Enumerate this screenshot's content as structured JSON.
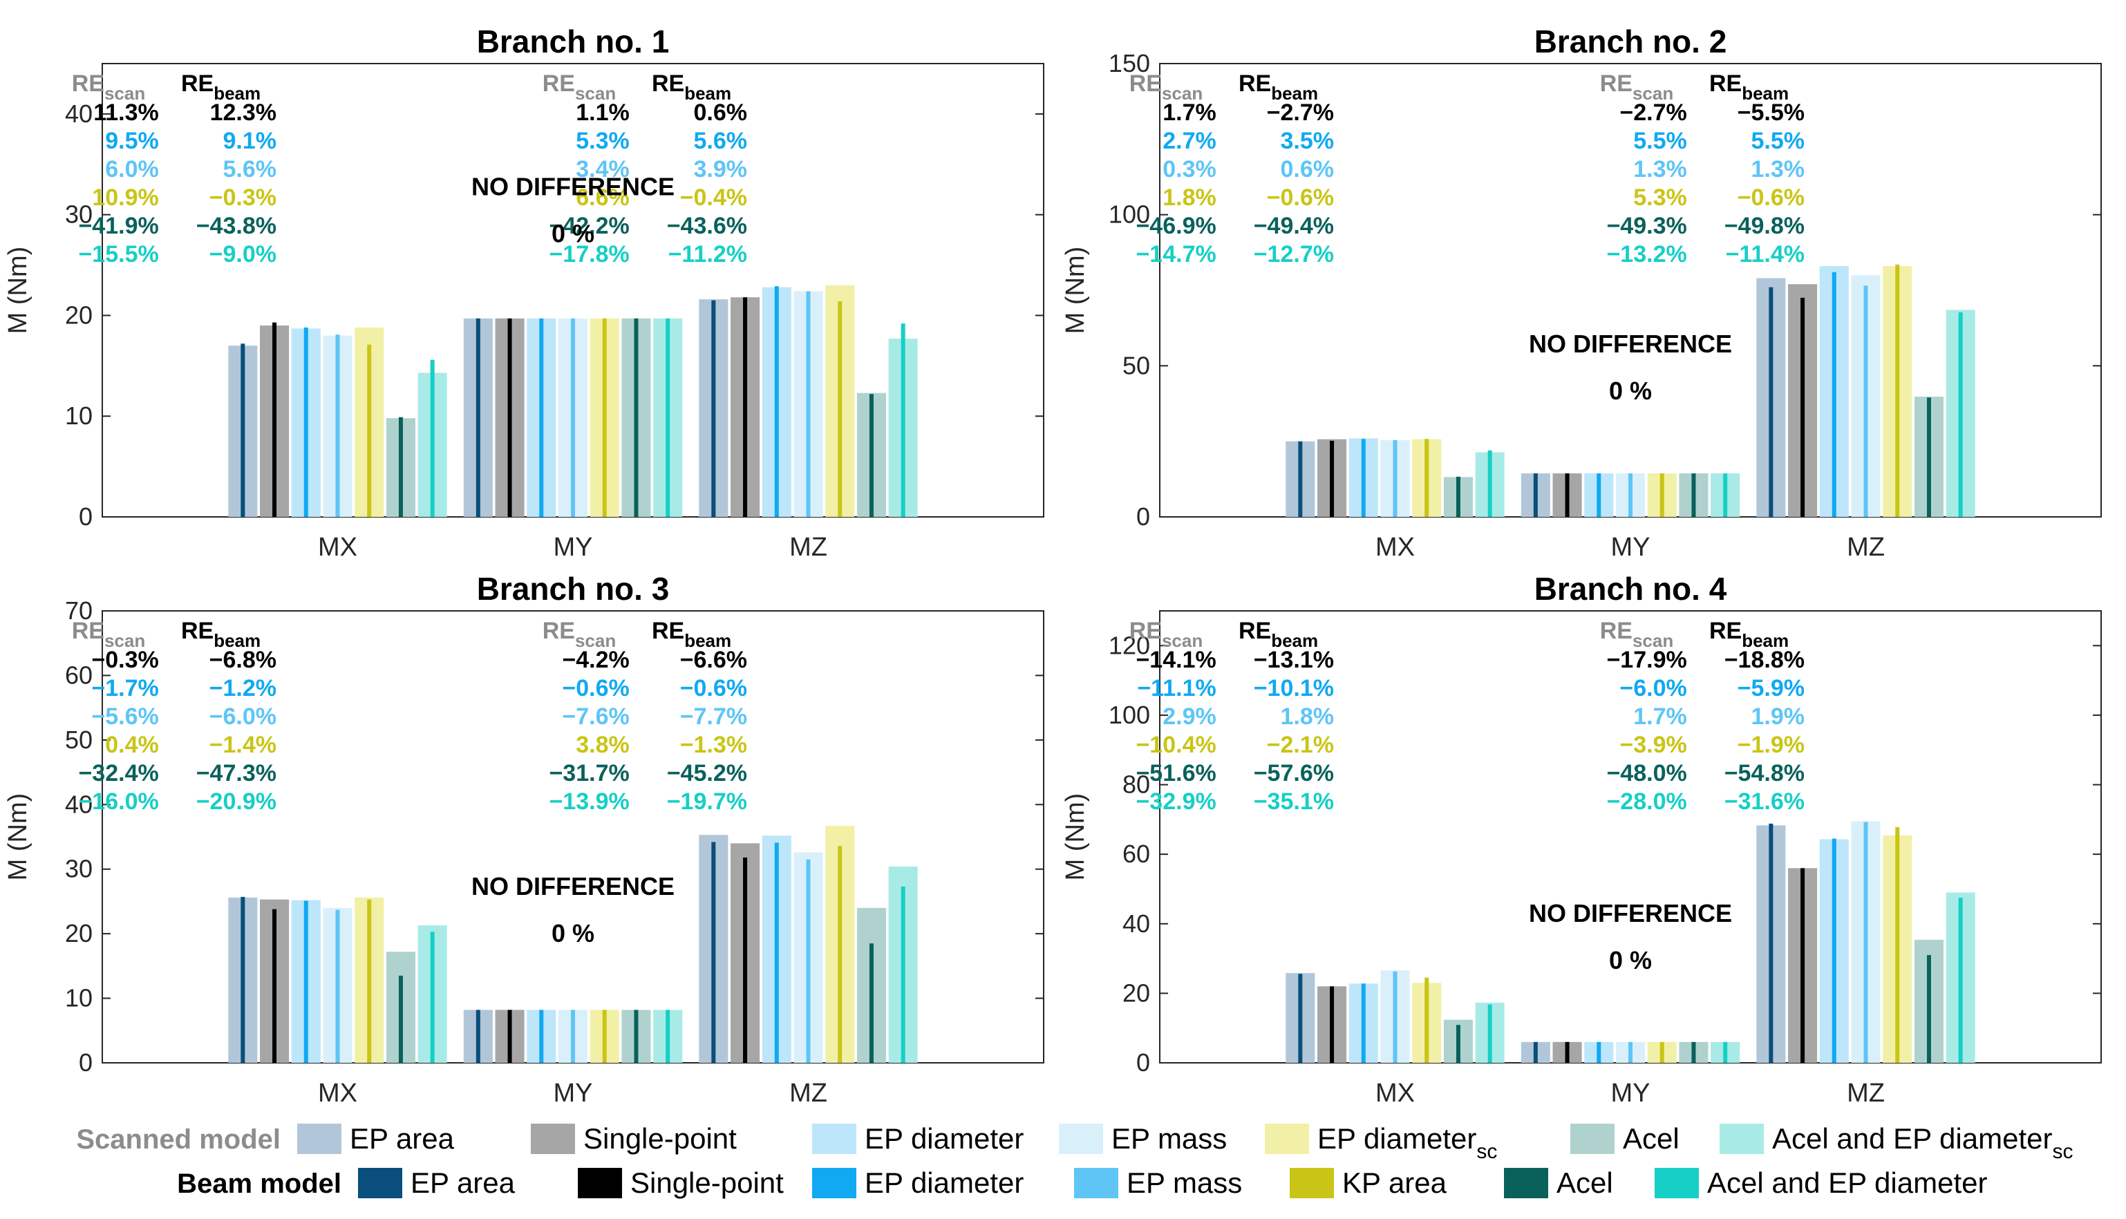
{
  "colors": {
    "scan": [
      "#b1c7d9",
      "#a6a6a6",
      "#bde6fb",
      "#d9f0fb",
      "#f2f0a6",
      "#b0d2ce",
      "#a8ebe6"
    ],
    "beam": [
      "#094e7c",
      "#000000",
      "#10a9f2",
      "#5ec5f6",
      "#c9c516",
      "#0a615b",
      "#16cfc6"
    ],
    "re_rows": [
      "#000000",
      "#10a9f2",
      "#5ec5f6",
      "#c9c516",
      "#0a615b",
      "#16cfc6"
    ],
    "re_scan_head": "#8c8c8c",
    "re_beam_head": "#000000"
  },
  "legend": {
    "scanned_title": "Scanned model",
    "beam_title": "Beam model",
    "scanned": [
      {
        "label": "EP area",
        "sub": ""
      },
      {
        "label": "Single-point",
        "sub": ""
      },
      {
        "label": "EP diameter",
        "sub": ""
      },
      {
        "label": "EP mass",
        "sub": ""
      },
      {
        "label": "EP diameter",
        "sub": "sc"
      },
      {
        "label": "Acel",
        "sub": ""
      },
      {
        "label": "Acel and EP diameter",
        "sub": "sc"
      }
    ],
    "beam": [
      {
        "label": "EP area",
        "sub": ""
      },
      {
        "label": "Single-point",
        "sub": ""
      },
      {
        "label": "EP diameter",
        "sub": ""
      },
      {
        "label": "EP mass",
        "sub": ""
      },
      {
        "label": "KP area",
        "sub": ""
      },
      {
        "label": "Acel",
        "sub": ""
      },
      {
        "label": "Acel and EP diameter",
        "sub": ""
      }
    ]
  },
  "re_labels": {
    "re": "RE",
    "scan_sub": "scan",
    "beam_sub": "beam"
  },
  "chart_data": [
    {
      "type": "bar",
      "title": "Branch no. 1",
      "ylabel": "M (Nm)",
      "categories": [
        "MX",
        "MY",
        "MZ"
      ],
      "ylim": [
        0,
        45
      ],
      "yticks": [
        0,
        10,
        20,
        30,
        40
      ],
      "series_scanned": [
        [
          17,
          19.7,
          21.6
        ],
        [
          19,
          19.7,
          21.8
        ],
        [
          18.7,
          19.7,
          22.8
        ],
        [
          18,
          19.7,
          22.4
        ],
        [
          18.8,
          19.7,
          23
        ],
        [
          9.8,
          19.7,
          12.3
        ],
        [
          14.3,
          19.7,
          17.7
        ]
      ],
      "series_beam": [
        [
          17.2,
          19.7,
          21.5
        ],
        [
          19.3,
          19.7,
          21.8
        ],
        [
          18.8,
          19.7,
          22.9
        ],
        [
          18.1,
          19.7,
          22.4
        ],
        [
          17.1,
          19.7,
          21.4
        ],
        [
          9.9,
          19.7,
          12.2
        ],
        [
          15.6,
          19.7,
          19.2
        ]
      ],
      "re": [
        {
          "cat": 0,
          "scan": [
            "11.3%",
            "9.5%",
            "6.0%",
            "10.9%",
            "−41.9%",
            "−15.5%"
          ],
          "beam": [
            "12.3%",
            "9.1%",
            "5.6%",
            "−0.3%",
            "−43.8%",
            "−9.0%"
          ]
        },
        {
          "cat": 2,
          "scan": [
            "1.1%",
            "5.3%",
            "3.4%",
            "6.6%",
            "−42.2%",
            "−17.8%"
          ],
          "beam": [
            "0.6%",
            "5.6%",
            "3.9%",
            "−0.4%",
            "−43.6%",
            "−11.2%"
          ]
        }
      ],
      "nodiff": {
        "cat": 1,
        "value": 30,
        "line1": "NO DIFFERENCE",
        "line2": "0 %"
      }
    },
    {
      "type": "bar",
      "title": "Branch no. 2",
      "ylabel": "M (Nm)",
      "categories": [
        "MX",
        "MY",
        "MZ"
      ],
      "ylim": [
        0,
        150
      ],
      "yticks": [
        0,
        50,
        100,
        150
      ],
      "series_scanned": [
        [
          25,
          14.4,
          79
        ],
        [
          25.7,
          14.4,
          77
        ],
        [
          26,
          14.4,
          83
        ],
        [
          25.4,
          14.4,
          80
        ],
        [
          25.7,
          14.4,
          83
        ],
        [
          13.2,
          14.4,
          39.8
        ],
        [
          21.4,
          14.4,
          68.5
        ]
      ],
      "series_beam": [
        [
          25,
          14.4,
          76
        ],
        [
          25.2,
          14.4,
          72.5
        ],
        [
          25.8,
          14.4,
          81
        ],
        [
          25.4,
          14.4,
          76.5
        ],
        [
          25.8,
          14.4,
          83.5
        ],
        [
          13.3,
          14.4,
          39.5
        ],
        [
          22,
          14.4,
          67.7
        ]
      ],
      "re": [
        {
          "cat": 0,
          "scan": [
            "1.7%",
            "2.7%",
            "0.3%",
            "1.8%",
            "−46.9%",
            "−14.7%"
          ],
          "beam": [
            "−2.7%",
            "3.5%",
            "0.6%",
            "−0.6%",
            "−49.4%",
            "−12.7%"
          ]
        },
        {
          "cat": 2,
          "scan": [
            "−2.7%",
            "5.5%",
            "1.3%",
            "5.3%",
            "−49.3%",
            "−13.2%"
          ],
          "beam": [
            "−5.5%",
            "5.5%",
            "1.3%",
            "−0.6%",
            "−49.8%",
            "−11.4%"
          ]
        }
      ],
      "nodiff": {
        "cat": 1,
        "value": 48,
        "line1": "NO DIFFERENCE",
        "line2": "0 %"
      }
    },
    {
      "type": "bar",
      "title": "Branch no. 3",
      "ylabel": "M (Nm)",
      "categories": [
        "MX",
        "MY",
        "MZ"
      ],
      "ylim": [
        0,
        70
      ],
      "yticks": [
        0,
        10,
        20,
        30,
        40,
        50,
        60,
        70
      ],
      "series_scanned": [
        [
          25.6,
          8.2,
          35.3
        ],
        [
          25.3,
          8.2,
          34
        ],
        [
          25.2,
          8.2,
          35.2
        ],
        [
          24,
          8.2,
          32.6
        ],
        [
          25.6,
          8.2,
          36.7
        ],
        [
          17.2,
          8.2,
          24
        ],
        [
          21.3,
          8.2,
          30.4
        ]
      ],
      "series_beam": [
        [
          25.7,
          8.2,
          34.2
        ],
        [
          23.8,
          8.2,
          31.8
        ],
        [
          25.1,
          8.2,
          34.1
        ],
        [
          23.7,
          8.2,
          31.5
        ],
        [
          25.3,
          8.2,
          33.6
        ],
        [
          13.5,
          8.2,
          18.5
        ],
        [
          20.3,
          8.2,
          27.3
        ]
      ],
      "re": [
        {
          "cat": 0,
          "scan": [
            "−0.3%",
            "−1.7%",
            "−5.6%",
            "0.4%",
            "−32.4%",
            "−16.0%"
          ],
          "beam": [
            "−6.8%",
            "−1.2%",
            "−6.0%",
            "−1.4%",
            "−47.3%",
            "−20.9%"
          ]
        },
        {
          "cat": 2,
          "scan": [
            "−4.2%",
            "−0.6%",
            "−7.6%",
            "3.8%",
            "−31.7%",
            "−13.9%"
          ],
          "beam": [
            "−6.6%",
            "−0.6%",
            "−7.7%",
            "−1.3%",
            "−45.2%",
            "−19.7%"
          ]
        }
      ],
      "nodiff": {
        "cat": 1,
        "value": 23,
        "line1": "NO DIFFERENCE",
        "line2": "0 %"
      }
    },
    {
      "type": "bar",
      "title": "Branch no. 4",
      "ylabel": "M (Nm)",
      "categories": [
        "MX",
        "MY",
        "MZ"
      ],
      "ylim": [
        0,
        130
      ],
      "yticks": [
        0,
        20,
        40,
        60,
        80,
        100,
        120
      ],
      "series_scanned": [
        [
          25.8,
          6,
          68.3
        ],
        [
          22,
          6,
          56
        ],
        [
          22.8,
          6,
          64.3
        ],
        [
          26.6,
          6,
          69.5
        ],
        [
          23,
          6,
          65.4
        ],
        [
          12.4,
          6,
          35.4
        ],
        [
          17.3,
          6,
          49
        ]
      ],
      "series_beam": [
        [
          25.6,
          6,
          68.8
        ],
        [
          22,
          6,
          56
        ],
        [
          22.8,
          6,
          64.5
        ],
        [
          26.3,
          6,
          69.3
        ],
        [
          24.5,
          6,
          67.8
        ],
        [
          10.9,
          6,
          31
        ],
        [
          16.8,
          6,
          47.5
        ]
      ],
      "re": [
        {
          "cat": 0,
          "scan": [
            "−14.1%",
            "−11.1%",
            "2.9%",
            "−10.4%",
            "−51.6%",
            "−32.9%"
          ],
          "beam": [
            "−13.1%",
            "−10.1%",
            "1.8%",
            "−2.1%",
            "−57.6%",
            "−35.1%"
          ]
        },
        {
          "cat": 2,
          "scan": [
            "−17.9%",
            "−6.0%",
            "1.7%",
            "−3.9%",
            "−48.0%",
            "−28.0%"
          ],
          "beam": [
            "−18.8%",
            "−5.9%",
            "1.9%",
            "−1.9%",
            "−54.8%",
            "−31.6%"
          ]
        }
      ],
      "nodiff": {
        "cat": 1,
        "value": 35,
        "line1": "NO DIFFERENCE",
        "line2": "0 %"
      }
    }
  ]
}
